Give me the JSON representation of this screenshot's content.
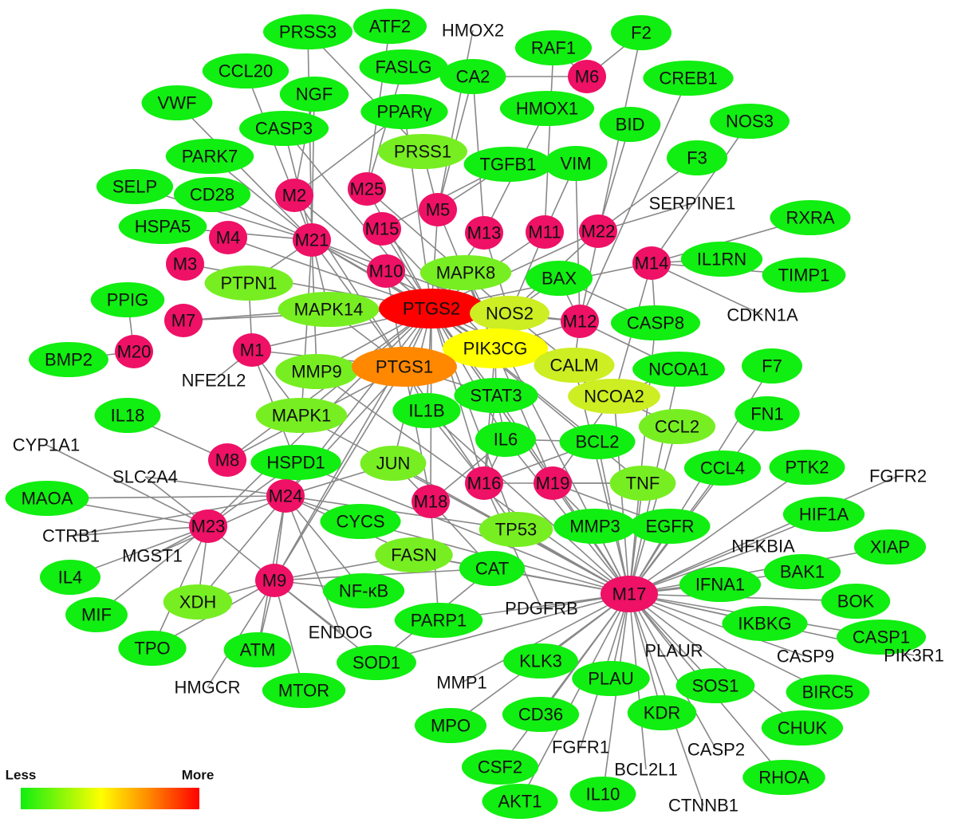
{
  "legend": {
    "low_label": "Less",
    "high_label": "More",
    "gradient": [
      "#11ee11",
      "#ffff00",
      "#ff8800",
      "#ff0000"
    ]
  },
  "colors": {
    "green": "#11ee11",
    "lightgreen": "#77ee22",
    "yellowgreen": "#ccee22",
    "yellow": "#ffff00",
    "orange": "#ff8800",
    "red": "#ff0000",
    "magenta": "#ee1166",
    "edge": "#888888"
  },
  "nodes": [
    {
      "id": "PRSS3",
      "c": "green"
    },
    {
      "id": "ATF2",
      "c": "green"
    },
    {
      "id": "HMOX2",
      "c": "none"
    },
    {
      "id": "RAF1",
      "c": "green"
    },
    {
      "id": "F2",
      "c": "green"
    },
    {
      "id": "CCL20",
      "c": "green"
    },
    {
      "id": "FASLG",
      "c": "green"
    },
    {
      "id": "CA2",
      "c": "green"
    },
    {
      "id": "M6",
      "c": "magenta"
    },
    {
      "id": "CREB1",
      "c": "green"
    },
    {
      "id": "VWF",
      "c": "green"
    },
    {
      "id": "NGF",
      "c": "green"
    },
    {
      "id": "PPARγ",
      "c": "green"
    },
    {
      "id": "HMOX1",
      "c": "green"
    },
    {
      "id": "CASP3",
      "c": "green"
    },
    {
      "id": "BID",
      "c": "green"
    },
    {
      "id": "NOS3",
      "c": "green"
    },
    {
      "id": "PARK7",
      "c": "green"
    },
    {
      "id": "PRSS1",
      "c": "lightgreen"
    },
    {
      "id": "TGFB1",
      "c": "green"
    },
    {
      "id": "VIM",
      "c": "green"
    },
    {
      "id": "F3",
      "c": "green"
    },
    {
      "id": "SELP",
      "c": "green"
    },
    {
      "id": "CD28",
      "c": "green"
    },
    {
      "id": "M2",
      "c": "magenta"
    },
    {
      "id": "M25",
      "c": "magenta"
    },
    {
      "id": "M5",
      "c": "magenta"
    },
    {
      "id": "SERPINE1",
      "c": "none"
    },
    {
      "id": "HSPA5",
      "c": "green"
    },
    {
      "id": "M4",
      "c": "magenta"
    },
    {
      "id": "M21",
      "c": "magenta"
    },
    {
      "id": "M15",
      "c": "magenta"
    },
    {
      "id": "M13",
      "c": "magenta"
    },
    {
      "id": "M11",
      "c": "magenta"
    },
    {
      "id": "M22",
      "c": "magenta"
    },
    {
      "id": "RXRA",
      "c": "green"
    },
    {
      "id": "M3",
      "c": "magenta"
    },
    {
      "id": "PTPN1",
      "c": "lightgreen"
    },
    {
      "id": "M10",
      "c": "magenta"
    },
    {
      "id": "MAPK8",
      "c": "lightgreen"
    },
    {
      "id": "BAX",
      "c": "green"
    },
    {
      "id": "M14",
      "c": "magenta"
    },
    {
      "id": "IL1RN",
      "c": "green"
    },
    {
      "id": "TIMP1",
      "c": "green"
    },
    {
      "id": "PPIG",
      "c": "green"
    },
    {
      "id": "MAPK14",
      "c": "lightgreen"
    },
    {
      "id": "PTGS2",
      "c": "red"
    },
    {
      "id": "NOS2",
      "c": "yellowgreen"
    },
    {
      "id": "M12",
      "c": "magenta"
    },
    {
      "id": "CDKN1A",
      "c": "none"
    },
    {
      "id": "M7",
      "c": "magenta"
    },
    {
      "id": "CASP8",
      "c": "green"
    },
    {
      "id": "PIK3CG",
      "c": "yellow"
    },
    {
      "id": "M1",
      "c": "magenta"
    },
    {
      "id": "BMP2",
      "c": "green"
    },
    {
      "id": "M20",
      "c": "magenta"
    },
    {
      "id": "MMP9",
      "c": "lightgreen"
    },
    {
      "id": "PTGS1",
      "c": "orange"
    },
    {
      "id": "CALM",
      "c": "yellowgreen"
    },
    {
      "id": "NCOA1",
      "c": "green"
    },
    {
      "id": "F7",
      "c": "green"
    },
    {
      "id": "NFE2L2",
      "c": "none"
    },
    {
      "id": "STAT3",
      "c": "green"
    },
    {
      "id": "NCOA2",
      "c": "yellowgreen"
    },
    {
      "id": "IL18",
      "c": "green"
    },
    {
      "id": "MAPK1",
      "c": "lightgreen"
    },
    {
      "id": "IL1B",
      "c": "green"
    },
    {
      "id": "FN1",
      "c": "green"
    },
    {
      "id": "CYP1A1",
      "c": "none"
    },
    {
      "id": "CCL2",
      "c": "lightgreen"
    },
    {
      "id": "IL6",
      "c": "green"
    },
    {
      "id": "BCL2",
      "c": "green"
    },
    {
      "id": "M8",
      "c": "magenta"
    },
    {
      "id": "HSPD1",
      "c": "green"
    },
    {
      "id": "JUN",
      "c": "lightgreen"
    },
    {
      "id": "CCL4",
      "c": "green"
    },
    {
      "id": "PTK2",
      "c": "green"
    },
    {
      "id": "SLC2A4",
      "c": "none"
    },
    {
      "id": "FGFR2",
      "c": "none"
    },
    {
      "id": "TNF",
      "c": "lightgreen"
    },
    {
      "id": "M16",
      "c": "magenta"
    },
    {
      "id": "M19",
      "c": "magenta"
    },
    {
      "id": "MAOA",
      "c": "green"
    },
    {
      "id": "M18",
      "c": "magenta"
    },
    {
      "id": "M24",
      "c": "magenta"
    },
    {
      "id": "HIF1A",
      "c": "green"
    },
    {
      "id": "CYCS",
      "c": "green"
    },
    {
      "id": "M23",
      "c": "magenta"
    },
    {
      "id": "EGFR",
      "c": "green"
    },
    {
      "id": "TP53",
      "c": "lightgreen"
    },
    {
      "id": "MMP3",
      "c": "green"
    },
    {
      "id": "CTRB1",
      "c": "none"
    },
    {
      "id": "XIAP",
      "c": "green"
    },
    {
      "id": "NFKBIA",
      "c": "none"
    },
    {
      "id": "MGST1",
      "c": "none"
    },
    {
      "id": "FASN",
      "c": "lightgreen"
    },
    {
      "id": "IL4",
      "c": "green"
    },
    {
      "id": "BAK1",
      "c": "green"
    },
    {
      "id": "CAT",
      "c": "green"
    },
    {
      "id": "M9",
      "c": "magenta"
    },
    {
      "id": "IFNA1",
      "c": "green"
    },
    {
      "id": "XDH",
      "c": "lightgreen"
    },
    {
      "id": "NF-κB",
      "c": "green"
    },
    {
      "id": "M17",
      "c": "magenta"
    },
    {
      "id": "BOK",
      "c": "green"
    },
    {
      "id": "MIF",
      "c": "green"
    },
    {
      "id": "PDGFRB",
      "c": "none"
    },
    {
      "id": "PARP1",
      "c": "green"
    },
    {
      "id": "ENDOG",
      "c": "none"
    },
    {
      "id": "IKBKG",
      "c": "green"
    },
    {
      "id": "CASP1",
      "c": "green"
    },
    {
      "id": "TPO",
      "c": "green"
    },
    {
      "id": "ATM",
      "c": "green"
    },
    {
      "id": "SOD1",
      "c": "green"
    },
    {
      "id": "PLAUR",
      "c": "none"
    },
    {
      "id": "CASP9",
      "c": "none"
    },
    {
      "id": "KLK3",
      "c": "green"
    },
    {
      "id": "PIK3R1",
      "c": "none"
    },
    {
      "id": "HMGCR",
      "c": "none"
    },
    {
      "id": "MMP1",
      "c": "none"
    },
    {
      "id": "PLAU",
      "c": "green"
    },
    {
      "id": "SOS1",
      "c": "green"
    },
    {
      "id": "MTOR",
      "c": "green"
    },
    {
      "id": "BIRC5",
      "c": "green"
    },
    {
      "id": "CD36",
      "c": "green"
    },
    {
      "id": "KDR",
      "c": "green"
    },
    {
      "id": "CHUK",
      "c": "green"
    },
    {
      "id": "MPO",
      "c": "green"
    },
    {
      "id": "FGFR1",
      "c": "none"
    },
    {
      "id": "CASP2",
      "c": "none"
    },
    {
      "id": "CSF2",
      "c": "green"
    },
    {
      "id": "BCL2L1",
      "c": "none"
    },
    {
      "id": "RHOA",
      "c": "green"
    },
    {
      "id": "IL10",
      "c": "green"
    },
    {
      "id": "AKT1",
      "c": "green"
    },
    {
      "id": "CTNNB1",
      "c": "none"
    }
  ],
  "edges": [
    [
      "M17",
      "EGFR"
    ],
    [
      "M17",
      "MMP3"
    ],
    [
      "M17",
      "TNF"
    ],
    [
      "M17",
      "HIF1A"
    ],
    [
      "M17",
      "FGFR2"
    ],
    [
      "M17",
      "XIAP"
    ],
    [
      "M17",
      "NFKBIA"
    ],
    [
      "M17",
      "BAK1"
    ],
    [
      "M17",
      "BOK"
    ],
    [
      "M17",
      "IFNA1"
    ],
    [
      "M17",
      "IKBKG"
    ],
    [
      "M17",
      "CASP1"
    ],
    [
      "M17",
      "CASP9"
    ],
    [
      "M17",
      "PIK3R1"
    ],
    [
      "M17",
      "BIRC5"
    ],
    [
      "M17",
      "SOS1"
    ],
    [
      "M17",
      "CHUK"
    ],
    [
      "M17",
      "PLAUR"
    ],
    [
      "M17",
      "KDR"
    ],
    [
      "M17",
      "CASP2"
    ],
    [
      "M17",
      "RHOA"
    ],
    [
      "M17",
      "BCL2L1"
    ],
    [
      "M17",
      "CTNNB1"
    ],
    [
      "M17",
      "IL10"
    ],
    [
      "M17",
      "FGFR1"
    ],
    [
      "M17",
      "AKT1"
    ],
    [
      "M17",
      "PLAU"
    ],
    [
      "M17",
      "CD36"
    ],
    [
      "M17",
      "CSF2"
    ],
    [
      "M17",
      "KLK3"
    ],
    [
      "M17",
      "MMP1"
    ],
    [
      "M17",
      "MPO"
    ],
    [
      "M17",
      "PDGFRB"
    ],
    [
      "M17",
      "PARP1"
    ],
    [
      "M17",
      "CAT"
    ],
    [
      "M17",
      "TP53"
    ],
    [
      "M17",
      "CCL4"
    ],
    [
      "M17",
      "PTK2"
    ],
    [
      "M17",
      "FN1"
    ],
    [
      "M17",
      "F7"
    ],
    [
      "M17",
      "NCOA1"
    ],
    [
      "M17",
      "CCL2"
    ],
    [
      "M17",
      "BCL2"
    ],
    [
      "M17",
      "IL6"
    ],
    [
      "M17",
      "STAT3"
    ],
    [
      "M17",
      "IL1B"
    ],
    [
      "M17",
      "JUN"
    ],
    [
      "M17",
      "CYCS"
    ],
    [
      "M17",
      "MAPK1"
    ],
    [
      "M17",
      "PTGS2"
    ],
    [
      "M17",
      "MAPK8"
    ],
    [
      "M17",
      "CASP8"
    ],
    [
      "M17",
      "NCOA2"
    ],
    [
      "M17",
      "CALM"
    ],
    [
      "M17",
      "MMP9"
    ],
    [
      "M17",
      "HSPD1"
    ],
    [
      "M17",
      "FASN"
    ],
    [
      "M17",
      "SOD1"
    ],
    [
      "M21",
      "PTPN1"
    ],
    [
      "M21",
      "MAPK14"
    ],
    [
      "M21",
      "PTGS2"
    ],
    [
      "M21",
      "PTGS1"
    ],
    [
      "M21",
      "CD28"
    ],
    [
      "M21",
      "PARK7"
    ],
    [
      "M21",
      "SELP"
    ],
    [
      "M21",
      "HSPA5"
    ],
    [
      "M21",
      "VWF"
    ],
    [
      "M21",
      "CCL20"
    ],
    [
      "M21",
      "NGF"
    ],
    [
      "M21",
      "CASP3"
    ],
    [
      "M21",
      "PRSS3"
    ],
    [
      "M21",
      "NOS2"
    ],
    [
      "M21",
      "MMP9"
    ],
    [
      "M21",
      "MAPK1"
    ],
    [
      "M21",
      "PIK3CG"
    ],
    [
      "M21",
      "CALM"
    ],
    [
      "M2",
      "PTGS2"
    ],
    [
      "M2",
      "PTGS1"
    ],
    [
      "M2",
      "NGF"
    ],
    [
      "M25",
      "PTGS2"
    ],
    [
      "M25",
      "FASLG"
    ],
    [
      "M25",
      "NOS2"
    ],
    [
      "M5",
      "PTGS2"
    ],
    [
      "M5",
      "PIK3CG"
    ],
    [
      "M5",
      "PRSS1"
    ],
    [
      "M5",
      "TGFB1"
    ],
    [
      "M5",
      "CA2"
    ],
    [
      "M15",
      "PTGS2"
    ],
    [
      "M15",
      "PIK3CG"
    ],
    [
      "M13",
      "PTGS2"
    ],
    [
      "M13",
      "HMOX1"
    ],
    [
      "M13",
      "NOS2"
    ],
    [
      "M11",
      "PTGS2"
    ],
    [
      "M11",
      "VIM"
    ],
    [
      "M11",
      "PIK3CG"
    ],
    [
      "M22",
      "PTGS2"
    ],
    [
      "M22",
      "SERPINE1"
    ],
    [
      "M22",
      "F3"
    ],
    [
      "M22",
      "BID"
    ],
    [
      "M22",
      "NOS2"
    ],
    [
      "M14",
      "IL1RN"
    ],
    [
      "M14",
      "TIMP1"
    ],
    [
      "M14",
      "RXRA"
    ],
    [
      "M14",
      "CDKN1A"
    ],
    [
      "M14",
      "PTGS2"
    ],
    [
      "M14",
      "NCOA2"
    ],
    [
      "M14",
      "NOS3"
    ],
    [
      "M14",
      "CASP8"
    ],
    [
      "M12",
      "PTGS2"
    ],
    [
      "M12",
      "CALM"
    ],
    [
      "M12",
      "NCOA1"
    ],
    [
      "M12",
      "BAX"
    ],
    [
      "M12",
      "F2"
    ],
    [
      "M12",
      "CREB1"
    ],
    [
      "M12",
      "PIK3CG"
    ],
    [
      "M12",
      "NOS2"
    ],
    [
      "M10",
      "PTGS2"
    ],
    [
      "M10",
      "PTGS1"
    ],
    [
      "M6",
      "CA2"
    ],
    [
      "M6",
      "RAF1"
    ],
    [
      "M6",
      "F2"
    ],
    [
      "M4",
      "PTGS2"
    ],
    [
      "M3",
      "PTGS2"
    ],
    [
      "M7",
      "MAPK14"
    ],
    [
      "M7",
      "PTGS2"
    ],
    [
      "M20",
      "PPIG"
    ],
    [
      "M20",
      "BMP2"
    ],
    [
      "M1",
      "PTGS2"
    ],
    [
      "M1",
      "PTGS1"
    ],
    [
      "M1",
      "NFE2L2"
    ],
    [
      "M1",
      "HSPD1"
    ],
    [
      "M1",
      "MAPK1"
    ],
    [
      "M1",
      "PTPN1"
    ],
    [
      "M8",
      "PTGS2"
    ],
    [
      "M8",
      "IL18"
    ],
    [
      "M8",
      "PTGS1"
    ],
    [
      "M24",
      "PTGS2"
    ],
    [
      "M24",
      "PTGS1"
    ],
    [
      "M24",
      "JUN"
    ],
    [
      "M24",
      "CYCS"
    ],
    [
      "M24",
      "HSPD1"
    ],
    [
      "M24",
      "FASN"
    ],
    [
      "M24",
      "NF-κB"
    ],
    [
      "M24",
      "XDH"
    ],
    [
      "M24",
      "MGST1"
    ],
    [
      "M24",
      "SLC2A4"
    ],
    [
      "M24",
      "CTRB1"
    ],
    [
      "M24",
      "TP53"
    ],
    [
      "M24",
      "MAOA"
    ],
    [
      "M24",
      "M9"
    ],
    [
      "M24",
      "ENDOG"
    ],
    [
      "M24",
      "ATM"
    ],
    [
      "M23",
      "SLC2A4"
    ],
    [
      "M23",
      "CYP1A1"
    ],
    [
      "M23",
      "MAOA"
    ],
    [
      "M23",
      "CTRB1"
    ],
    [
      "M23",
      "IL4"
    ],
    [
      "M23",
      "MIF"
    ],
    [
      "M23",
      "MGST1"
    ],
    [
      "M23",
      "XDH"
    ],
    [
      "M23",
      "TPO"
    ],
    [
      "M23",
      "M9"
    ],
    [
      "M23",
      "PTGS2"
    ],
    [
      "M23",
      "HSPD1"
    ],
    [
      "M9",
      "XDH"
    ],
    [
      "M9",
      "NF-κB"
    ],
    [
      "M9",
      "ATM"
    ],
    [
      "M9",
      "MTOR"
    ],
    [
      "M9",
      "HMGCR"
    ],
    [
      "M9",
      "ENDOG"
    ],
    [
      "M9",
      "SOD1"
    ],
    [
      "M9",
      "FASN"
    ],
    [
      "M9",
      "PTGS2"
    ],
    [
      "M9",
      "PTGS1"
    ],
    [
      "M9",
      "CAT"
    ],
    [
      "M9",
      "TPO"
    ],
    [
      "M18",
      "PTGS2"
    ],
    [
      "M18",
      "PTGS1"
    ],
    [
      "M18",
      "IL6"
    ],
    [
      "M18",
      "PARP1"
    ],
    [
      "M18",
      "CAT"
    ],
    [
      "M18",
      "JUN"
    ],
    [
      "M16",
      "PTGS2"
    ],
    [
      "M16",
      "PTGS1"
    ],
    [
      "M16",
      "PIK3CG"
    ],
    [
      "M16",
      "IL6"
    ],
    [
      "M16",
      "TNF"
    ],
    [
      "M16",
      "BCL2"
    ],
    [
      "M16",
      "STAT3"
    ],
    [
      "M16",
      "TP53"
    ],
    [
      "M16",
      "PDGFRB"
    ],
    [
      "M16",
      "IL1B"
    ],
    [
      "M19",
      "PTGS2"
    ],
    [
      "M19",
      "PIK3CG"
    ],
    [
      "M19",
      "TNF"
    ],
    [
      "M19",
      "EGFR"
    ],
    [
      "M19",
      "MMP3"
    ],
    [
      "M19",
      "NCOA2"
    ],
    [
      "PTGS2",
      "PIK3CG"
    ],
    [
      "PTGS2",
      "NOS2"
    ],
    [
      "PTGS2",
      "PTGS1"
    ],
    [
      "PTGS2",
      "IL6"
    ],
    [
      "PTGS2",
      "MAPK8"
    ],
    [
      "PTGS2",
      "TNF"
    ],
    [
      "PTGS2",
      "IL1B"
    ],
    [
      "PTGS2",
      "STAT3"
    ],
    [
      "PTGS2",
      "BCL2"
    ],
    [
      "PTGS2",
      "MAPK1"
    ],
    [
      "PTGS2",
      "MMP9"
    ],
    [
      "PTGS2",
      "JUN"
    ],
    [
      "PTGS2",
      "TP53"
    ],
    [
      "PTGS2",
      "CASP3"
    ],
    [
      "PTGS2",
      "PPARγ"
    ],
    [
      "PTGS2",
      "CCL2"
    ],
    [
      "PTGS1",
      "PIK3CG"
    ],
    [
      "PTGS1",
      "MAPK14"
    ],
    [
      "PTGS1",
      "IL1B"
    ],
    [
      "PTGS1",
      "STAT3"
    ],
    [
      "PIK3CG",
      "CALM"
    ],
    [
      "PIK3CG",
      "STAT3"
    ],
    [
      "PIK3CG",
      "MAPK8"
    ],
    [
      "NOS2",
      "CALM"
    ],
    [
      "NOS2",
      "BAX"
    ],
    [
      "CALM",
      "NCOA2"
    ],
    [
      "NCOA2",
      "NCOA1"
    ],
    [
      "BAX",
      "CASP8"
    ],
    [
      "IL6",
      "BCL2"
    ],
    [
      "IL6",
      "STAT3"
    ],
    [
      "FASN",
      "CAT"
    ],
    [
      "SOD1",
      "CAT"
    ],
    [
      "PRSS1",
      "PRSS3"
    ],
    [
      "PPARγ",
      "M2"
    ],
    [
      "ATF2",
      "M25"
    ],
    [
      "HMOX2",
      "M5"
    ],
    [
      "CA2",
      "M13"
    ],
    [
      "RAF1",
      "M11"
    ],
    [
      "TGFB1",
      "M15"
    ],
    [
      "VIM",
      "M12"
    ]
  ]
}
